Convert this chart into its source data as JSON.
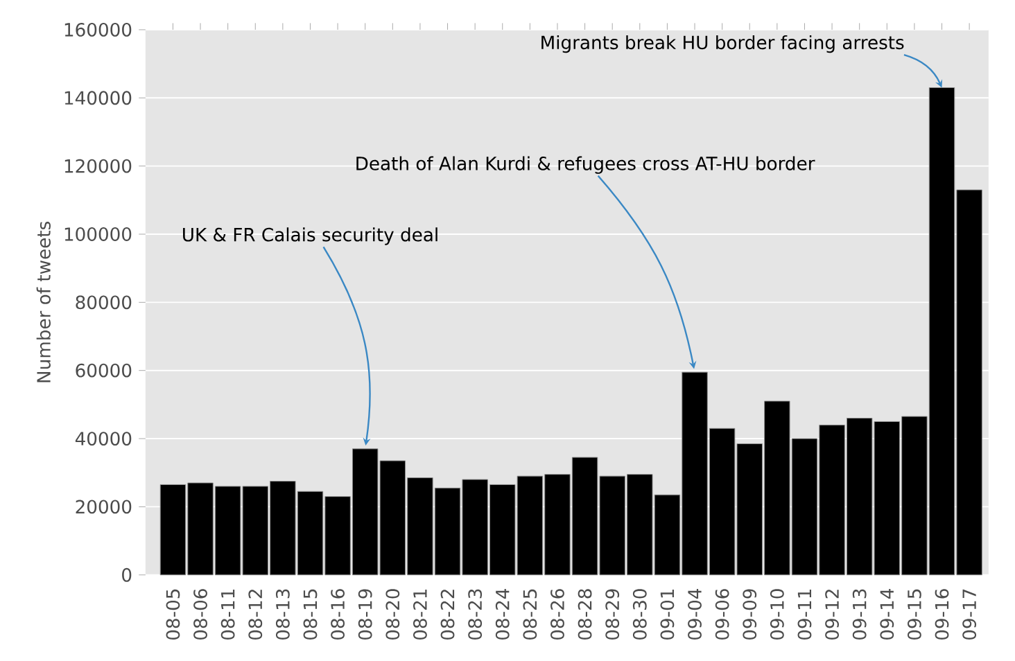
{
  "chart_data": {
    "type": "bar",
    "ylabel": "Number of tweets",
    "categories": [
      "08-05",
      "08-06",
      "08-11",
      "08-12",
      "08-13",
      "08-15",
      "08-16",
      "08-19",
      "08-20",
      "08-21",
      "08-22",
      "08-23",
      "08-24",
      "08-25",
      "08-26",
      "08-28",
      "08-29",
      "08-30",
      "09-01",
      "09-04",
      "09-06",
      "09-09",
      "09-10",
      "09-11",
      "09-12",
      "09-13",
      "09-14",
      "09-15",
      "09-16",
      "09-17"
    ],
    "values": [
      26500,
      27000,
      26000,
      26000,
      27500,
      24500,
      23000,
      37000,
      33500,
      28500,
      25500,
      28000,
      26500,
      29000,
      29500,
      34500,
      29000,
      29500,
      23500,
      59500,
      43000,
      38500,
      51000,
      40000,
      44000,
      46000,
      45000,
      46500,
      143000,
      113000
    ],
    "color": "#000000",
    "ylim": [
      0,
      160000
    ],
    "yticks": [
      0,
      20000,
      40000,
      60000,
      80000,
      100000,
      120000,
      140000,
      160000
    ],
    "grid": "y",
    "annotations": [
      {
        "text": "UK & FR Calais security deal",
        "x": "08-19",
        "y": 37000
      },
      {
        "text": "Death of Alan Kurdi & refugees cross AT-HU border",
        "x": "09-04",
        "y": 59500
      },
      {
        "text": "Migrants break HU border facing arrests",
        "x": "09-16",
        "y": 143000
      }
    ]
  }
}
